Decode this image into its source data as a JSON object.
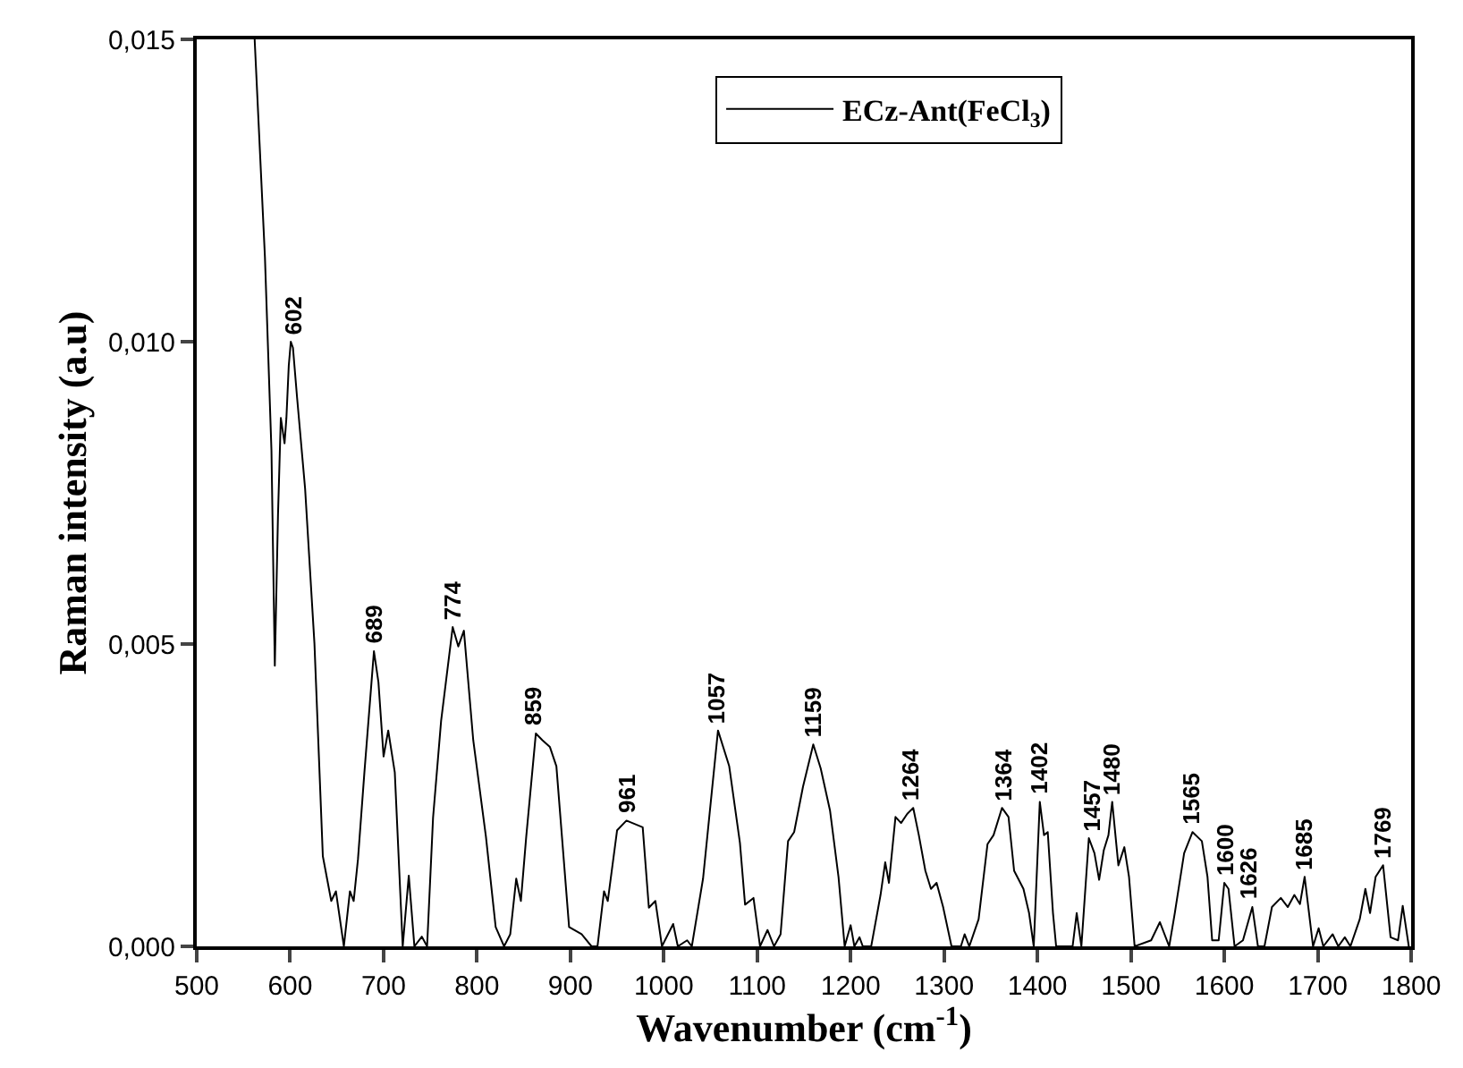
{
  "chart_data": {
    "type": "line",
    "xlabel": "Wavenumber (cm$^{-1}$)",
    "ylabel": "Raman intensity (a.u)",
    "legend": "top",
    "grid": false,
    "line_style": "solid",
    "marker": "none",
    "xlim": [
      500,
      1800
    ],
    "xticks": [
      500,
      600,
      700,
      800,
      900,
      1000,
      1100,
      1200,
      1300,
      1400,
      1500,
      1600,
      1700,
      1800
    ],
    "ylim": [
      0,
      0.015
    ],
    "yticks": [
      {
        "value": 0,
        "label": "0,000"
      },
      {
        "value": 0.005,
        "label": "0,005"
      },
      {
        "value": 0.01,
        "label": "0,010"
      },
      {
        "value": 0.015,
        "label": "0,015"
      }
    ],
    "x": [
      562,
      573,
      580,
      583.6,
      587,
      590,
      594,
      596,
      598.5,
      600.7,
      603,
      607.5,
      616,
      626,
      635,
      644,
      649,
      657.5,
      664,
      668,
      672.6,
      679.5,
      689.7,
      694.5,
      700,
      705,
      712,
      720.5,
      727,
      733,
      741,
      746.6,
      753,
      761.6,
      774,
      780,
      786,
      796,
      809.6,
      820,
      829,
      835.6,
      842,
      847,
      852.7,
      863,
      870,
      878,
      885,
      898.6,
      912,
      922.6,
      929,
      936,
      940,
      950,
      960,
      977.4,
      984,
      991,
      998,
      1010,
      1015,
      1025,
      1030,
      1042,
      1058,
      1070,
      1081.5,
      1087,
      1096,
      1103,
      1111,
      1118,
      1125,
      1133,
      1139.5,
      1149,
      1160,
      1168,
      1178,
      1187,
      1193.6,
      1200,
      1204,
      1209.5,
      1213,
      1222,
      1232,
      1237,
      1241,
      1248,
      1254,
      1260.5,
      1267,
      1273,
      1280,
      1286,
      1292,
      1299,
      1308,
      1318,
      1322,
      1327,
      1337,
      1346.5,
      1353,
      1362,
      1369,
      1375,
      1385,
      1391,
      1396,
      1402.5,
      1407,
      1411,
      1416.6,
      1420,
      1437.6,
      1442,
      1447,
      1455,
      1461,
      1466,
      1471,
      1476,
      1480,
      1486.6,
      1493,
      1498,
      1504,
      1521.7,
      1531,
      1541,
      1547,
      1557,
      1566,
      1576,
      1582,
      1587,
      1594,
      1600,
      1604.5,
      1611,
      1620,
      1630,
      1636,
      1643,
      1651,
      1660.5,
      1668,
      1675,
      1681,
      1686,
      1695,
      1701,
      1706,
      1716,
      1722,
      1729,
      1735,
      1745,
      1751,
      1756,
      1762,
      1770,
      1778,
      1786,
      1791,
      1797.5
    ],
    "series": [
      {
        "name": "ECz-Ant(FeCl$_{3}$)",
        "color": "#000000",
        "values": [
          0.015,
          0.0114,
          0.0082,
          0.00464,
          0.00714,
          0.00874,
          0.00832,
          0.00874,
          0.0096,
          0.01,
          0.0099,
          0.00906,
          0.00757,
          0.00501,
          0.00149,
          0.00075,
          0.00091,
          0,
          0.00091,
          0.00075,
          0.00144,
          0.00288,
          0.00488,
          0.00437,
          0.00314,
          0.00357,
          0.00288,
          0,
          0.00117,
          0,
          0.00016,
          0,
          0.00213,
          0.00373,
          0.00528,
          0.00496,
          0.00522,
          0.00341,
          0.00181,
          0.00032,
          0,
          0.0002,
          0.00112,
          0.00075,
          0.00181,
          0.00352,
          0.00341,
          0.0033,
          0.00298,
          0.00032,
          0.0002,
          0,
          0,
          0.00091,
          0.00075,
          0.00192,
          0.00208,
          0.00197,
          0.00064,
          0.00075,
          0,
          0.00037,
          0,
          0.0001,
          0,
          0.00112,
          0.00357,
          0.00298,
          0.00171,
          0.00069,
          0.0008,
          0,
          0.00027,
          0,
          0.0002,
          0.00174,
          0.00189,
          0.00264,
          0.00334,
          0.00294,
          0.00224,
          0.00115,
          0,
          0.00035,
          0,
          0.00015,
          0,
          0,
          0.00085,
          0.00139,
          0.00105,
          0.00214,
          0.00204,
          0.00219,
          0.00229,
          0.00184,
          0.00125,
          0.00095,
          0.00105,
          0.00065,
          0,
          0,
          0.0002,
          0,
          0.00045,
          0.00169,
          0.00184,
          0.00229,
          0.00214,
          0.00125,
          0.00095,
          0.00055,
          0,
          0.00239,
          0.00184,
          0.00189,
          0.00055,
          0,
          0,
          0.00055,
          0,
          0.00179,
          0.00154,
          0.0011,
          0.00159,
          0.00184,
          0.00239,
          0.00134,
          0.00164,
          0.00115,
          0,
          0.0001,
          0.0004,
          0,
          0.00055,
          0.00154,
          0.00189,
          0.00174,
          0.00115,
          0.0001,
          0.0001,
          0.00105,
          0.00095,
          0,
          0.0001,
          0.00065,
          0,
          0,
          0.00065,
          0.0008,
          0.00065,
          0.00085,
          0.0007,
          0.00115,
          0,
          0.0003,
          0,
          0.0002,
          0,
          0.00015,
          0,
          0.00045,
          0.00095,
          0.00055,
          0.00115,
          0.00134,
          0.00015,
          0.0001,
          0.00067,
          0
        ]
      }
    ],
    "annotations": [
      {
        "text": "602",
        "x": 602,
        "y": 0.01
      },
      {
        "text": "689",
        "x": 689,
        "y": 0.00488
      },
      {
        "text": "774",
        "x": 774,
        "y": 0.00528
      },
      {
        "text": "859",
        "x": 859,
        "y": 0.00352
      },
      {
        "text": "961",
        "x": 961,
        "y": 0.00208
      },
      {
        "text": "1057",
        "x": 1057,
        "y": 0.00357
      },
      {
        "text": "1159",
        "x": 1159,
        "y": 0.00334
      },
      {
        "text": "1264",
        "x": 1264,
        "y": 0.00229
      },
      {
        "text": "1364",
        "x": 1364,
        "y": 0.00229
      },
      {
        "text": "1402",
        "x": 1402,
        "y": 0.00239
      },
      {
        "text": "1457",
        "x": 1457,
        "y": 0.00179
      },
      {
        "text": "1480",
        "x": 1480,
        "y": 0.00239
      },
      {
        "text": "1565",
        "x": 1565,
        "y": 0.00189
      },
      {
        "text": "1600",
        "x": 1600,
        "y": 0.00105
      },
      {
        "text": "1626",
        "x": 1626,
        "y": 0.00065
      },
      {
        "text": "1685",
        "x": 1685,
        "y": 0.00115
      },
      {
        "text": "1769",
        "x": 1769,
        "y": 0.00134
      }
    ]
  }
}
